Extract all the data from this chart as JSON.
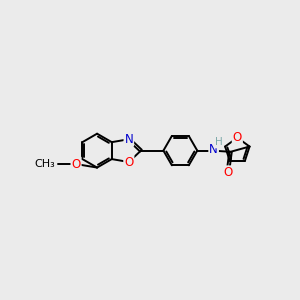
{
  "bg_color": "#ebebeb",
  "bond_color": "#000000",
  "atom_colors": {
    "O": "#ff0000",
    "N": "#0000cd",
    "H": "#7faaaa",
    "C": "#000000"
  },
  "bond_width": 1.4,
  "font_size": 8.5
}
